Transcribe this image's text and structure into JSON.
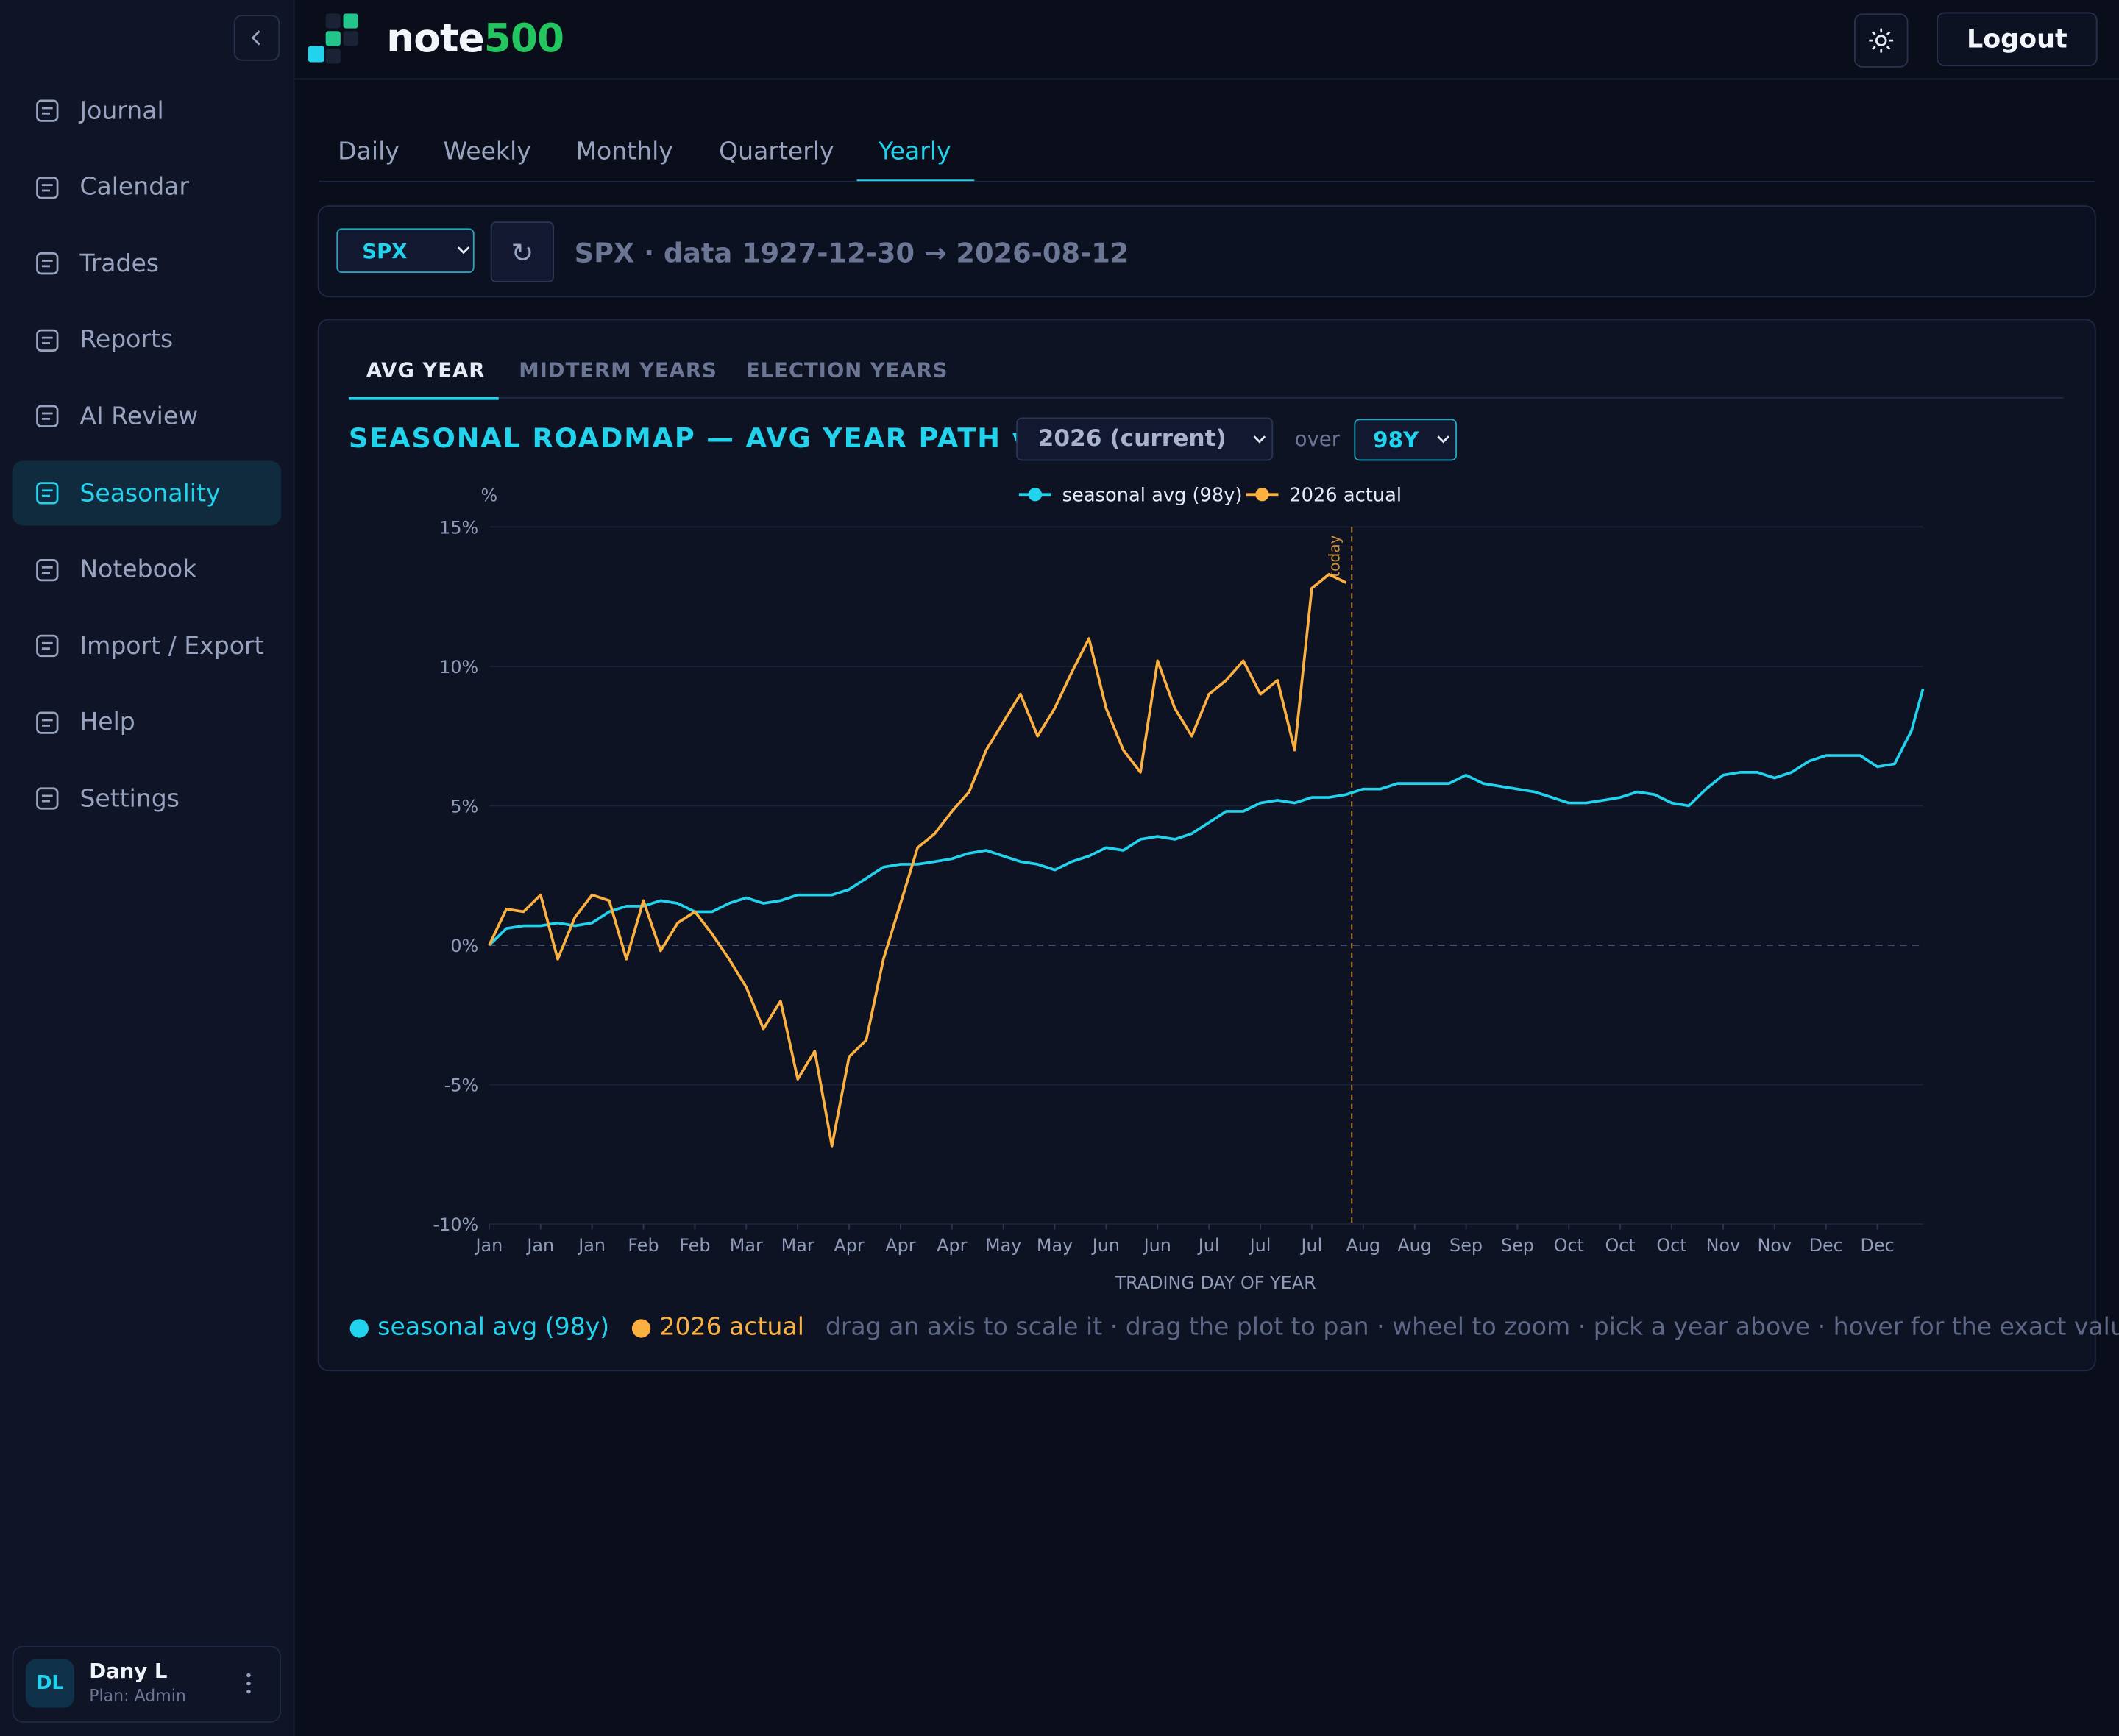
{
  "app": {
    "logo_a": "note",
    "logo_b": "500",
    "logout": "Logout"
  },
  "nav": {
    "items": [
      "Journal",
      "Calendar",
      "Trades",
      "Reports",
      "AI Review",
      "Seasonality",
      "Notebook",
      "Import / Export",
      "Help",
      "Settings"
    ],
    "active": "Seasonality"
  },
  "user": {
    "initials": "DL",
    "name": "Dany L",
    "plan": "Plan: Admin"
  },
  "tabs": {
    "items": [
      "Daily",
      "Weekly",
      "Monthly",
      "Quarterly",
      "Yearly"
    ],
    "active": "Yearly"
  },
  "toolbar": {
    "symbol": "SPX",
    "refresh": "↻",
    "info": "SPX · data 1927-12-30 → 2026-08-12"
  },
  "subtabs": {
    "items": [
      "AVG YEAR",
      "MIDTERM YEARS",
      "ELECTION YEARS"
    ],
    "active": "AVG YEAR"
  },
  "controls": {
    "year": "2026 (current)",
    "over": "over",
    "span": "98Y"
  },
  "hint": "drag an axis to scale it · drag the plot to pan · wheel to zoom · pick a year above · hover for the exact value",
  "chart_data": {
    "type": "line",
    "title": "SEASONAL ROADMAP — AVG YEAR PATH vs",
    "y_label": "%",
    "x_label": "TRADING DAY OF YEAR",
    "x": [
      0,
      3,
      6,
      9,
      12,
      15,
      18,
      21,
      24,
      27,
      30,
      33,
      36,
      39,
      42,
      45,
      48,
      51,
      54,
      57,
      60,
      63,
      66,
      69,
      72,
      75,
      78,
      81,
      84,
      87,
      90,
      93,
      96,
      99,
      102,
      105,
      108,
      111,
      114,
      117,
      120,
      123,
      126,
      129,
      132,
      135,
      138,
      141,
      144,
      147,
      150,
      153,
      156,
      159,
      162,
      165,
      168,
      171,
      174,
      177,
      180,
      183,
      186,
      189,
      192,
      195,
      198,
      201,
      204,
      207,
      210,
      213,
      216,
      219,
      222,
      225,
      228,
      231,
      234,
      237,
      240,
      243,
      246,
      249,
      251
    ],
    "xlim": [
      0,
      251
    ],
    "xticks": [
      {
        "value": 0,
        "label": "Jan"
      },
      {
        "value": 9,
        "label": "Jan"
      },
      {
        "value": 18,
        "label": "Jan"
      },
      {
        "value": 27,
        "label": "Feb"
      },
      {
        "value": 36,
        "label": "Feb"
      },
      {
        "value": 45,
        "label": "Mar"
      },
      {
        "value": 54,
        "label": "Mar"
      },
      {
        "value": 63,
        "label": "Apr"
      },
      {
        "value": 72,
        "label": "Apr"
      },
      {
        "value": 81,
        "label": "Apr"
      },
      {
        "value": 90,
        "label": "May"
      },
      {
        "value": 99,
        "label": "May"
      },
      {
        "value": 108,
        "label": "Jun"
      },
      {
        "value": 117,
        "label": "Jun"
      },
      {
        "value": 126,
        "label": "Jul"
      },
      {
        "value": 135,
        "label": "Jul"
      },
      {
        "value": 144,
        "label": "Jul"
      },
      {
        "value": 153,
        "label": "Aug"
      },
      {
        "value": 162,
        "label": "Aug"
      },
      {
        "value": 171,
        "label": "Sep"
      },
      {
        "value": 180,
        "label": "Sep"
      },
      {
        "value": 189,
        "label": "Oct"
      },
      {
        "value": 198,
        "label": "Oct"
      },
      {
        "value": 207,
        "label": "Oct"
      },
      {
        "value": 216,
        "label": "Nov"
      },
      {
        "value": 225,
        "label": "Nov"
      },
      {
        "value": 234,
        "label": "Dec"
      },
      {
        "value": 243,
        "label": "Dec"
      }
    ],
    "ylim": [
      -10,
      15
    ],
    "yticks": [
      {
        "value": -10,
        "label": "-10%"
      },
      {
        "value": -5,
        "label": "-5%"
      },
      {
        "value": 0,
        "label": "0%"
      },
      {
        "value": 5,
        "label": "5%"
      },
      {
        "value": 10,
        "label": "10%"
      },
      {
        "value": 15,
        "label": "15%"
      }
    ],
    "grid": true,
    "legend": "top",
    "series": [
      {
        "name": "seasonal avg (98y)",
        "color": "#22d3ee",
        "values": [
          0,
          0.6,
          0.7,
          0.7,
          0.8,
          0.7,
          0.8,
          1.2,
          1.4,
          1.4,
          1.6,
          1.5,
          1.2,
          1.2,
          1.5,
          1.7,
          1.5,
          1.6,
          1.8,
          1.8,
          1.8,
          2.0,
          2.4,
          2.8,
          2.9,
          2.9,
          3.0,
          3.1,
          3.3,
          3.4,
          3.2,
          3.0,
          2.9,
          2.7,
          3.0,
          3.2,
          3.5,
          3.4,
          3.8,
          3.9,
          3.8,
          4.0,
          4.4,
          4.8,
          4.8,
          5.1,
          5.2,
          5.1,
          5.3,
          5.3,
          5.4,
          5.6,
          5.6,
          5.8,
          5.8,
          5.8,
          5.8,
          6.1,
          5.8,
          5.7,
          5.6,
          5.5,
          5.3,
          5.1,
          5.1,
          5.2,
          5.3,
          5.5,
          5.4,
          5.1,
          5.0,
          5.6,
          6.1,
          6.2,
          6.2,
          6.0,
          6.2,
          6.6,
          6.8,
          6.8,
          6.8,
          6.4,
          6.5,
          7.7,
          9.2
        ]
      },
      {
        "name": "2026 actual",
        "color": "#fbb040",
        "values": [
          0,
          1.3,
          1.2,
          1.8,
          -0.5,
          1.0,
          1.8,
          1.6,
          -0.5,
          1.6,
          -0.2,
          0.8,
          1.2,
          0.4,
          -0.5,
          -1.5,
          -3.0,
          -2.0,
          -4.8,
          -3.8,
          -7.2,
          -4.0,
          -3.4,
          -0.5,
          1.5,
          3.5,
          4.0,
          4.8,
          5.5,
          7.0,
          8.0,
          9.0,
          7.5,
          8.5,
          9.8,
          11.0,
          8.5,
          7.0,
          6.2,
          10.2,
          8.5,
          7.5,
          9.0,
          9.5,
          10.2,
          9.0,
          9.5,
          7.0,
          12.8,
          13.3,
          13.0,
          null,
          null,
          null,
          null,
          null,
          null,
          null,
          null,
          null,
          null,
          null,
          null,
          null,
          null,
          null,
          null,
          null,
          null,
          null,
          null,
          null,
          null,
          null,
          null,
          null,
          null,
          null,
          null,
          null,
          null,
          null,
          null,
          null,
          null
        ]
      }
    ],
    "annotations": [
      {
        "x": 151,
        "label": "today"
      }
    ]
  }
}
